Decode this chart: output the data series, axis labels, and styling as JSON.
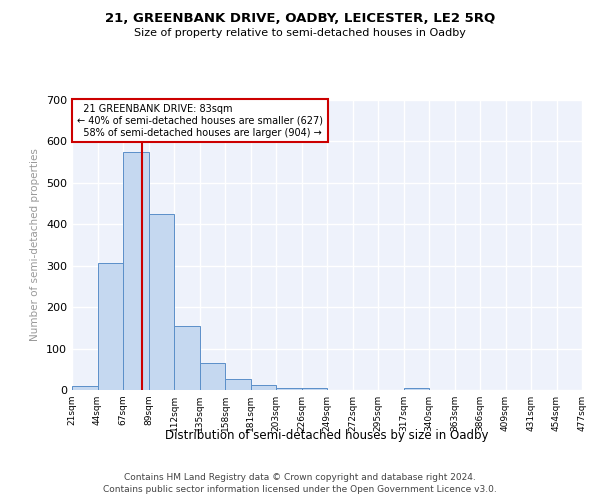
{
  "title": "21, GREENBANK DRIVE, OADBY, LEICESTER, LE2 5RQ",
  "subtitle": "Size of property relative to semi-detached houses in Oadby",
  "xlabel": "Distribution of semi-detached houses by size in Oadby",
  "ylabel": "Number of semi-detached properties",
  "bar_values": [
    10,
    307,
    575,
    425,
    155,
    65,
    27,
    12,
    5,
    5,
    0,
    0,
    0,
    6,
    0,
    0,
    0,
    0,
    0,
    0
  ],
  "x_labels": [
    "21sqm",
    "44sqm",
    "67sqm",
    "89sqm",
    "112sqm",
    "135sqm",
    "158sqm",
    "181sqm",
    "203sqm",
    "226sqm",
    "249sqm",
    "272sqm",
    "295sqm",
    "317sqm",
    "340sqm",
    "363sqm",
    "386sqm",
    "409sqm",
    "431sqm",
    "454sqm",
    "477sqm"
  ],
  "bar_color": "#c5d8f0",
  "bar_edge_color": "#5b8fc9",
  "background_color": "#eef2fb",
  "grid_color": "#ffffff",
  "ylim": [
    0,
    700
  ],
  "yticks": [
    0,
    100,
    200,
    300,
    400,
    500,
    600,
    700
  ],
  "property_size": 83,
  "property_bin_index": 2,
  "property_label": "21 GREENBANK DRIVE: 83sqm",
  "pct_smaller": 40,
  "pct_larger": 58,
  "n_smaller": 627,
  "n_larger": 904,
  "red_line_color": "#cc0000",
  "annotation_box_color": "#cc0000",
  "footer_line1": "Contains HM Land Registry data © Crown copyright and database right 2024.",
  "footer_line2": "Contains public sector information licensed under the Open Government Licence v3.0."
}
